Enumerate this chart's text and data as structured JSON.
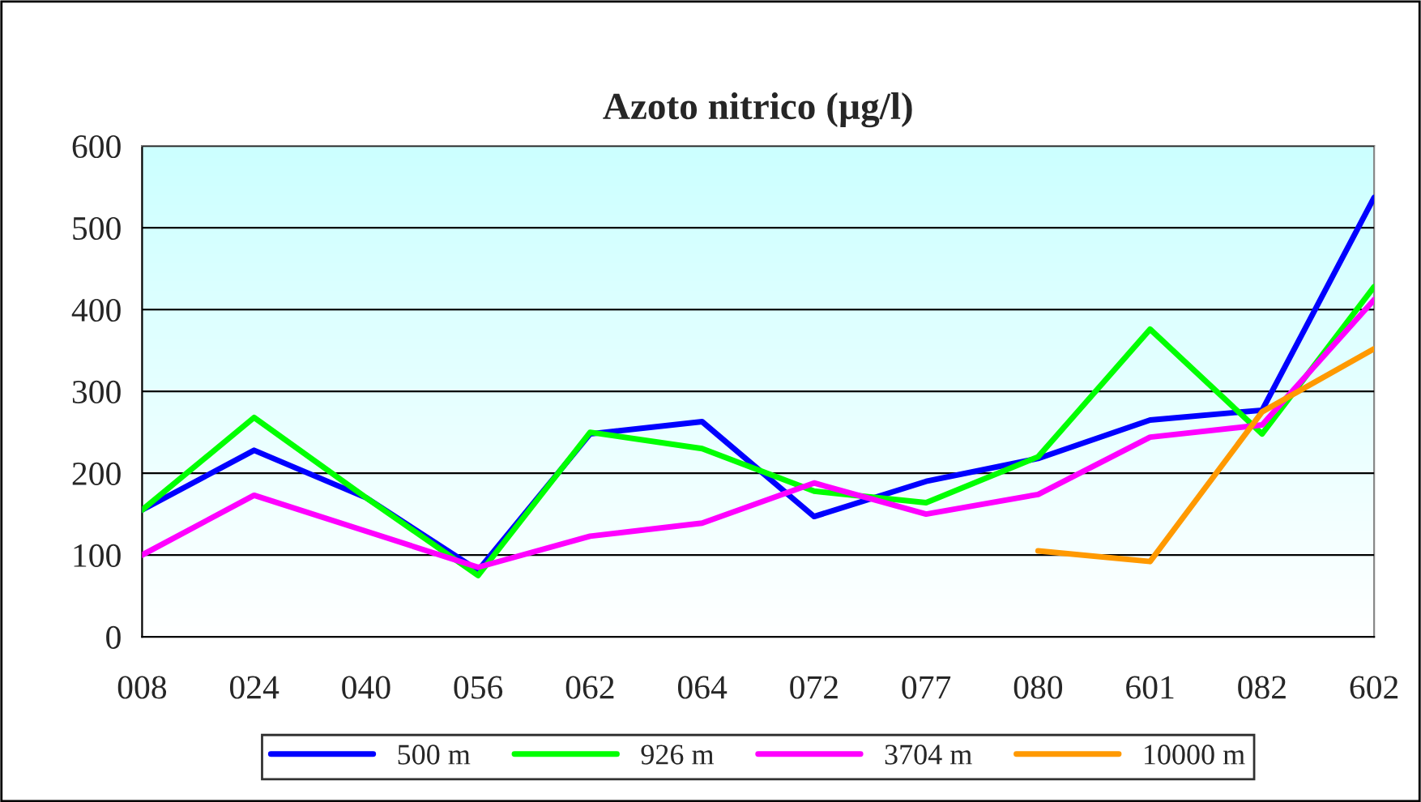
{
  "chart_data": {
    "type": "line",
    "title": "Azoto nitrico (µg/l)",
    "categories": [
      "008",
      "024",
      "040",
      "056",
      "062",
      "064",
      "072",
      "077",
      "080",
      "601",
      "082",
      "602"
    ],
    "series": [
      {
        "name": "500 m",
        "color": "#0000ff",
        "values": [
          155,
          228,
          170,
          81,
          248,
          263,
          147,
          190,
          218,
          265,
          277,
          537
        ]
      },
      {
        "name": "926 m",
        "color": "#00ff00",
        "values": [
          155,
          268,
          170,
          75,
          250,
          230,
          178,
          164,
          220,
          376,
          248,
          428
        ]
      },
      {
        "name": "3704 m",
        "color": "#ff00ff",
        "values": [
          100,
          173,
          129,
          85,
          123,
          139,
          188,
          150,
          174,
          244,
          259,
          412
        ]
      },
      {
        "name": "10000 m",
        "color": "#ff9900",
        "values": [
          null,
          null,
          null,
          null,
          null,
          null,
          null,
          null,
          105,
          92,
          275,
          352
        ]
      }
    ],
    "ylim": [
      0,
      600
    ],
    "yticks": [
      0,
      100,
      200,
      300,
      400,
      500,
      600
    ],
    "grid": "y",
    "legend": "bottom",
    "marker": "none",
    "line_style": "solid"
  }
}
